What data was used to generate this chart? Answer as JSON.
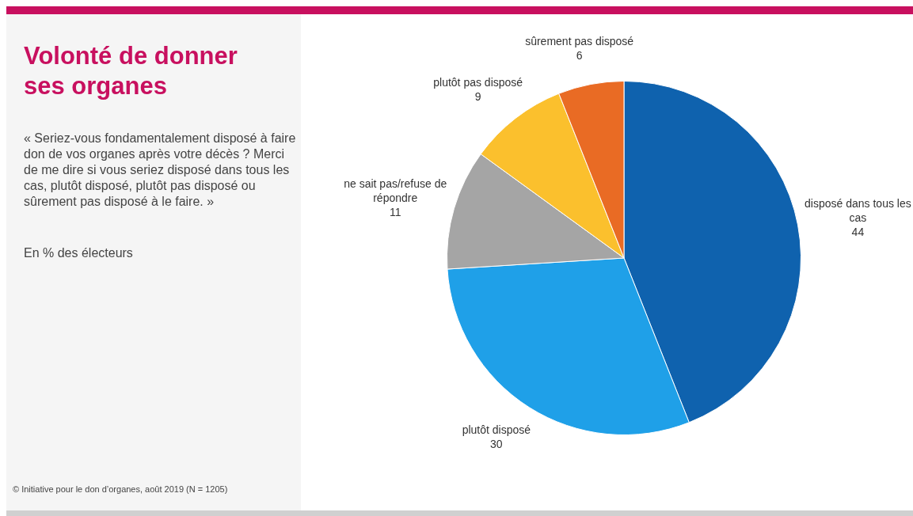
{
  "chart_data": {
    "type": "pie",
    "title": "Volonté de donner ses organes",
    "subtitle": "« Seriez-vous fondamentalement disposé à faire don de vos organes après votre décès ? Merci de me dire si vous seriez disposé dans tous les cas, plutôt disposé, plutôt pas disposé ou sûrement pas disposé à le faire. »",
    "annotations": [
      "En % des électeurs",
      "© Initiative pour le don d’organes, août 2019 (N = 1205)"
    ],
    "categories": [
      "disposé dans tous les cas",
      "plutôt disposé",
      "ne sait pas/refuse de répondre",
      "plutôt pas disposé",
      "sûrement pas disposé"
    ],
    "values": [
      44,
      30,
      11,
      9,
      6
    ],
    "colors": [
      "#0f62ae",
      "#1fa0e8",
      "#a5a5a5",
      "#fbc02d",
      "#e96b24"
    ],
    "data_labels": true,
    "legend": false
  }
}
